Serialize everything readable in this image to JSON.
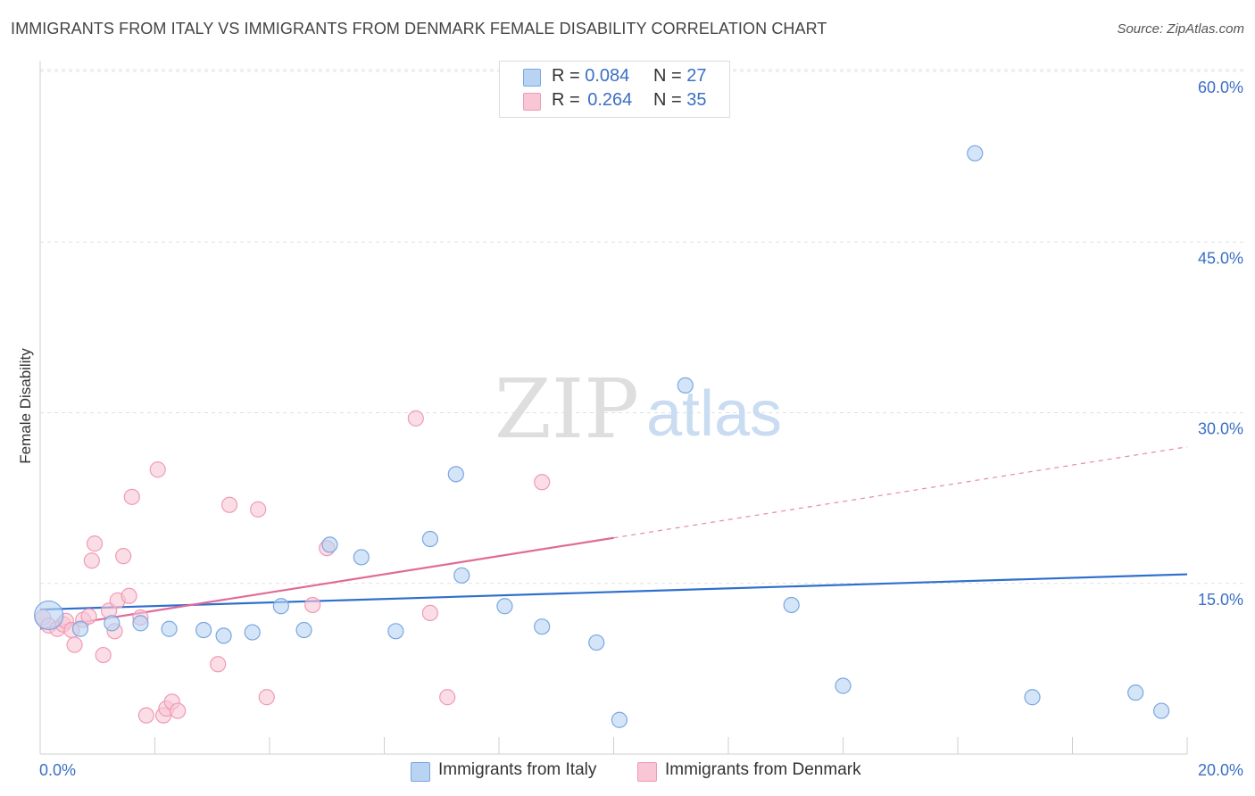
{
  "title": "IMMIGRANTS FROM ITALY VS IMMIGRANTS FROM DENMARK FEMALE DISABILITY CORRELATION CHART",
  "source": "Source: ZipAtlas.com",
  "watermark": {
    "zip": "ZIP",
    "atlas": "atlas"
  },
  "colors": {
    "italy_fill": "#b9d3f3",
    "italy_stroke": "#7aa6e3",
    "italy_line": "#2f6fcd",
    "denmark_fill": "#f9c6d5",
    "denmark_stroke": "#ef9bb6",
    "denmark_line": "#e06b97",
    "axis_label": "#3a6fc4",
    "grid": "#e0e0e0"
  },
  "legend": {
    "italy": {
      "r_label": "R =",
      "r_value": "0.084",
      "n_label": "N =",
      "n_value": "27"
    },
    "denmark": {
      "r_label": "R =",
      "r_value": "0.264",
      "n_label": "N =",
      "n_value": "35"
    }
  },
  "chart_data": {
    "type": "scatter",
    "title": "IMMIGRANTS FROM ITALY VS IMMIGRANTS FROM DENMARK FEMALE DISABILITY CORRELATION CHART",
    "xlabel": "",
    "ylabel": "Female Disability",
    "xlim": [
      0,
      20
    ],
    "ylim": [
      0,
      60
    ],
    "x_tick_labels": [
      "0.0%",
      "20.0%"
    ],
    "y_ticks": [
      15,
      30,
      45,
      60
    ],
    "y_tick_labels": [
      "15.0%",
      "30.0%",
      "45.0%",
      "60.0%"
    ],
    "series": [
      {
        "name": "Immigrants from Italy",
        "trend": {
          "x0": 0,
          "y0": 12.7,
          "x1": 20,
          "y1": 15.8,
          "dashed_from": null
        },
        "points": [
          {
            "x": 0.15,
            "y": 12.2,
            "big": true
          },
          {
            "x": 0.7,
            "y": 11.0
          },
          {
            "x": 1.25,
            "y": 11.5
          },
          {
            "x": 1.75,
            "y": 11.5
          },
          {
            "x": 2.25,
            "y": 11.0
          },
          {
            "x": 2.85,
            "y": 10.9
          },
          {
            "x": 3.2,
            "y": 10.4
          },
          {
            "x": 3.7,
            "y": 10.7
          },
          {
            "x": 4.2,
            "y": 13.0
          },
          {
            "x": 4.6,
            "y": 10.9
          },
          {
            "x": 5.05,
            "y": 18.4
          },
          {
            "x": 5.6,
            "y": 17.3
          },
          {
            "x": 6.2,
            "y": 10.8
          },
          {
            "x": 6.8,
            "y": 18.9
          },
          {
            "x": 7.25,
            "y": 24.6
          },
          {
            "x": 7.35,
            "y": 15.7
          },
          {
            "x": 8.1,
            "y": 13.0
          },
          {
            "x": 8.75,
            "y": 11.2
          },
          {
            "x": 9.7,
            "y": 9.8
          },
          {
            "x": 10.1,
            "y": 3.0
          },
          {
            "x": 11.25,
            "y": 32.4
          },
          {
            "x": 13.1,
            "y": 13.1
          },
          {
            "x": 14.0,
            "y": 6.0
          },
          {
            "x": 16.3,
            "y": 52.8
          },
          {
            "x": 17.3,
            "y": 5.0
          },
          {
            "x": 19.1,
            "y": 5.4
          },
          {
            "x": 19.55,
            "y": 3.8
          }
        ]
      },
      {
        "name": "Immigrants from Denmark",
        "trend": {
          "x0": 0,
          "y0": 11.0,
          "x1": 20,
          "y1": 27.0,
          "dashed_from": 10.0
        },
        "points": [
          {
            "x": 0.05,
            "y": 12.0
          },
          {
            "x": 0.15,
            "y": 11.3
          },
          {
            "x": 0.3,
            "y": 11.0
          },
          {
            "x": 0.4,
            "y": 11.4
          },
          {
            "x": 0.45,
            "y": 11.7
          },
          {
            "x": 0.55,
            "y": 10.9
          },
          {
            "x": 0.6,
            "y": 9.6
          },
          {
            "x": 0.75,
            "y": 11.8
          },
          {
            "x": 0.85,
            "y": 12.1
          },
          {
            "x": 0.9,
            "y": 17.0
          },
          {
            "x": 0.95,
            "y": 18.5
          },
          {
            "x": 1.1,
            "y": 8.7
          },
          {
            "x": 1.2,
            "y": 12.6
          },
          {
            "x": 1.3,
            "y": 10.8
          },
          {
            "x": 1.35,
            "y": 13.5
          },
          {
            "x": 1.45,
            "y": 17.4
          },
          {
            "x": 1.55,
            "y": 13.9
          },
          {
            "x": 1.6,
            "y": 22.6
          },
          {
            "x": 1.75,
            "y": 12.0
          },
          {
            "x": 1.85,
            "y": 3.4
          },
          {
            "x": 2.05,
            "y": 25.0
          },
          {
            "x": 2.15,
            "y": 3.4
          },
          {
            "x": 2.2,
            "y": 4.0
          },
          {
            "x": 2.3,
            "y": 4.6
          },
          {
            "x": 2.4,
            "y": 3.8
          },
          {
            "x": 3.1,
            "y": 7.9
          },
          {
            "x": 3.3,
            "y": 21.9
          },
          {
            "x": 3.8,
            "y": 21.5
          },
          {
            "x": 3.95,
            "y": 5.0
          },
          {
            "x": 4.75,
            "y": 13.1
          },
          {
            "x": 5.0,
            "y": 18.1
          },
          {
            "x": 6.55,
            "y": 29.5
          },
          {
            "x": 6.8,
            "y": 12.4
          },
          {
            "x": 7.1,
            "y": 5.0
          },
          {
            "x": 8.75,
            "y": 23.9
          }
        ]
      }
    ],
    "legend_position": "top-center"
  }
}
